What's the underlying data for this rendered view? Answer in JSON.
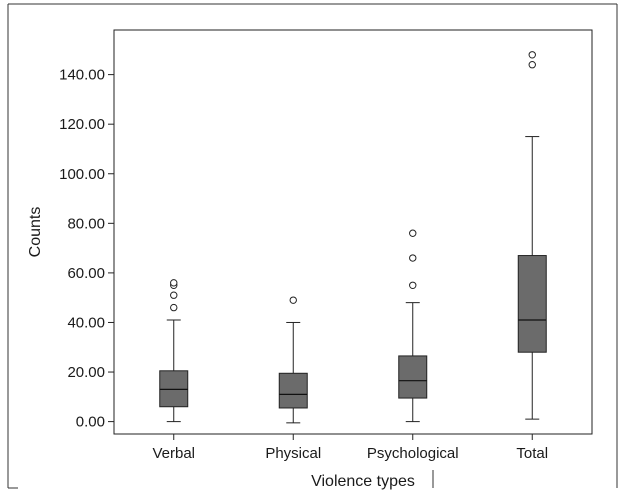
{
  "chart_data": {
    "type": "boxplot",
    "xlabel": "Violence types",
    "ylabel": "Counts",
    "ylim": [
      -5,
      158
    ],
    "yticks": [
      0,
      20,
      40,
      60,
      80,
      100,
      120,
      140
    ],
    "ytick_labels": [
      "0.00",
      "20.00",
      "40.00",
      "60.00",
      "80.00",
      "100.00",
      "120.00",
      "140.00"
    ],
    "grid": false,
    "box_color": "#6b6b6b",
    "categories": [
      "Verbal",
      "Physical",
      "Psychological",
      "Total"
    ],
    "boxes": [
      {
        "min": 0,
        "q1": 6,
        "median": 13,
        "q3": 20.5,
        "max": 41,
        "outliers": [
          46,
          51,
          55,
          56
        ]
      },
      {
        "min": -0.5,
        "q1": 5.5,
        "median": 11,
        "q3": 19.5,
        "max": 40,
        "outliers": [
          49
        ]
      },
      {
        "min": 0,
        "q1": 9.5,
        "median": 16.5,
        "q3": 26.5,
        "max": 48,
        "outliers": [
          55,
          66,
          76
        ]
      },
      {
        "min": 1,
        "q1": 28,
        "median": 41,
        "q3": 67,
        "max": 115,
        "outliers": [
          144,
          148
        ]
      }
    ]
  }
}
